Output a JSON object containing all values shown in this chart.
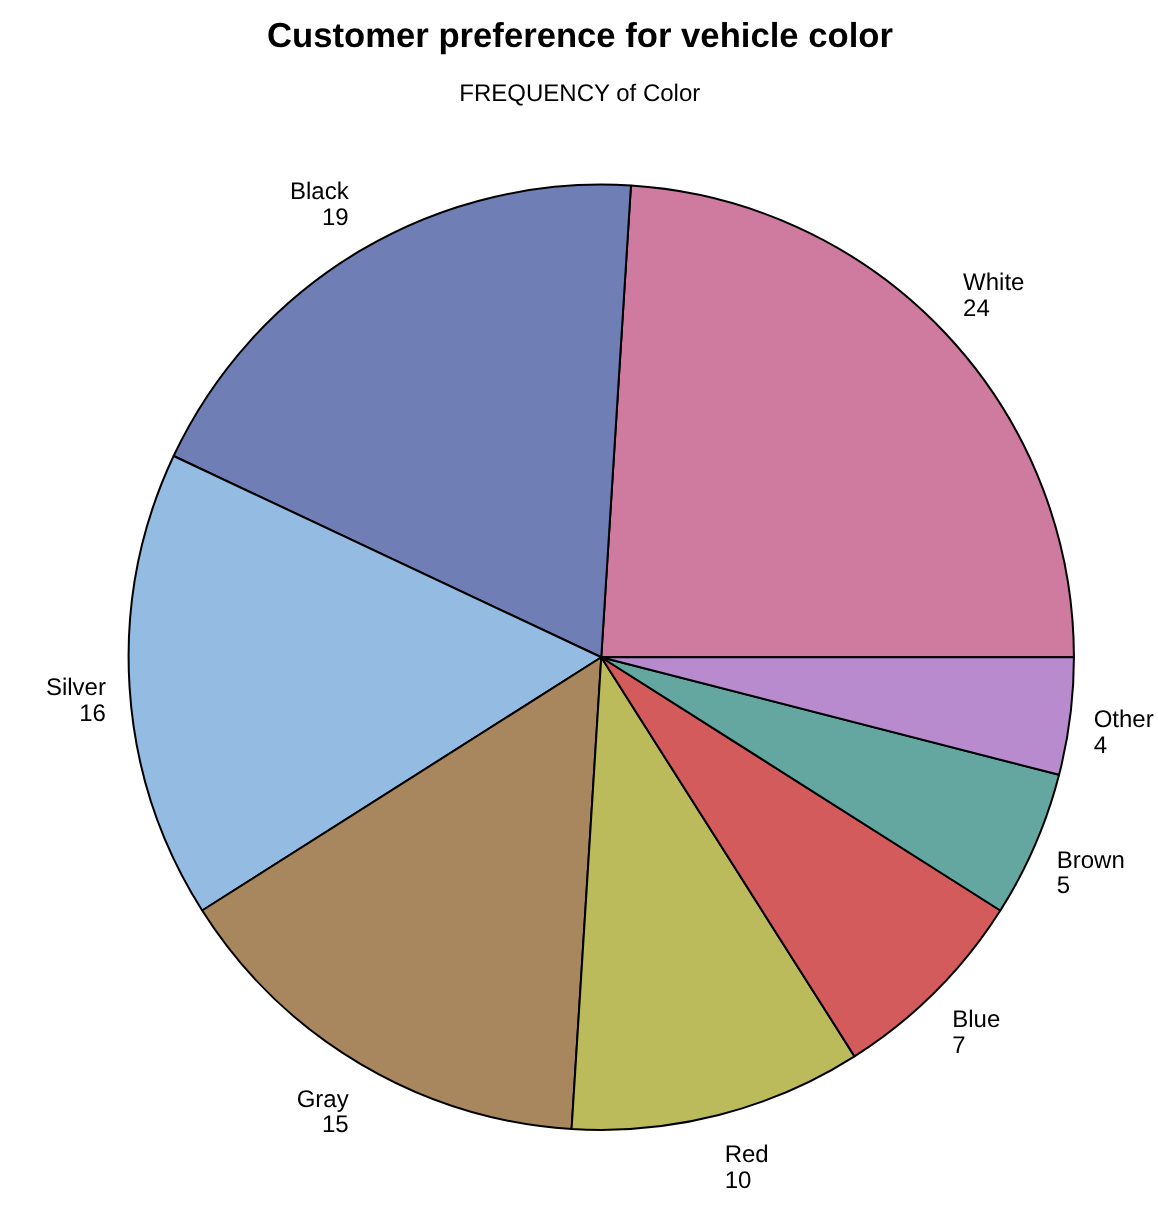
{
  "chart_data": {
    "type": "pie",
    "title": "Customer preference for vehicle color",
    "subtitle": "FREQUENCY of Color",
    "categories": [
      "White",
      "Black",
      "Silver",
      "Gray",
      "Red",
      "Blue",
      "Brown",
      "Other"
    ],
    "values": [
      24,
      19,
      16,
      15,
      10,
      7,
      5,
      4
    ],
    "colors": [
      "#cf7ba0",
      "#6f7fb5",
      "#94bbe1",
      "#a9875e",
      "#bbbb5b",
      "#d35b5b",
      "#64a7a0",
      "#b88ace"
    ],
    "data_labels": true
  }
}
